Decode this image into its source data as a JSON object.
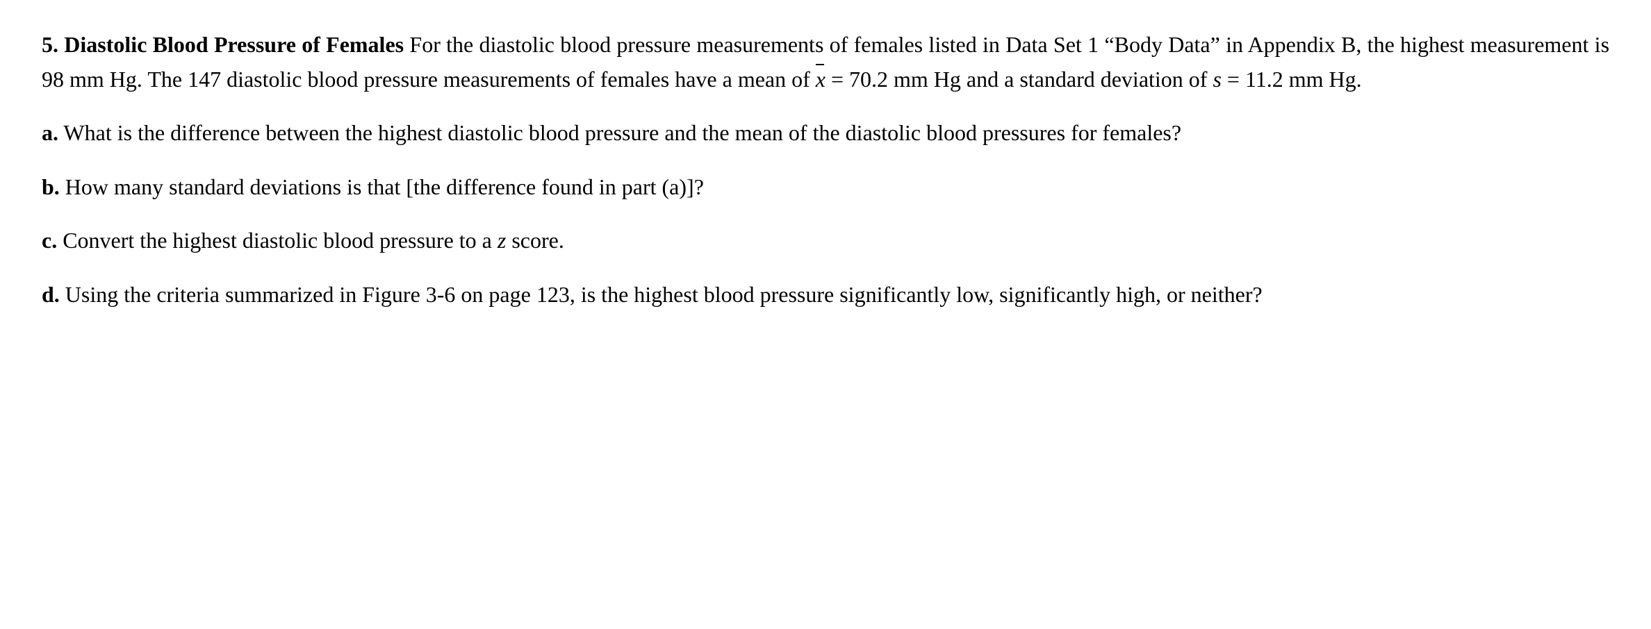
{
  "problem": {
    "number": "5.",
    "title": "Diastolic Blood Pressure of Females",
    "intro_part1": "For the diastolic blood pressure measurements of females listed in Data Set 1 “Body Data” in Appendix B, the highest measurement is 98 mm Hg. The 147 diastolic blood pressure measurements of females have a mean of ",
    "mean_symbol": "x",
    "equals1": " = ",
    "mean_value": "70.2 mm Hg",
    "intro_part2": " and a standard deviation of ",
    "sd_symbol": "s",
    "equals2": " = ",
    "sd_value": "11.2 mm Hg."
  },
  "parts": {
    "a": {
      "label": "a.",
      "text": " What is the difference between the highest diastolic blood pressure and the mean of the diastolic blood pressures for females?"
    },
    "b": {
      "label": "b.",
      "text": " How many standard deviations is that [the difference found in part (a)]?"
    },
    "c": {
      "label": "c.",
      "pre": " Convert the highest diastolic blood pressure to a ",
      "z": "z",
      "post": " score."
    },
    "d": {
      "label": "d.",
      "text": " Using the criteria summarized in Figure 3-6 on page 123, is the highest blood pressure significantly low, significantly high, or neither?"
    }
  }
}
